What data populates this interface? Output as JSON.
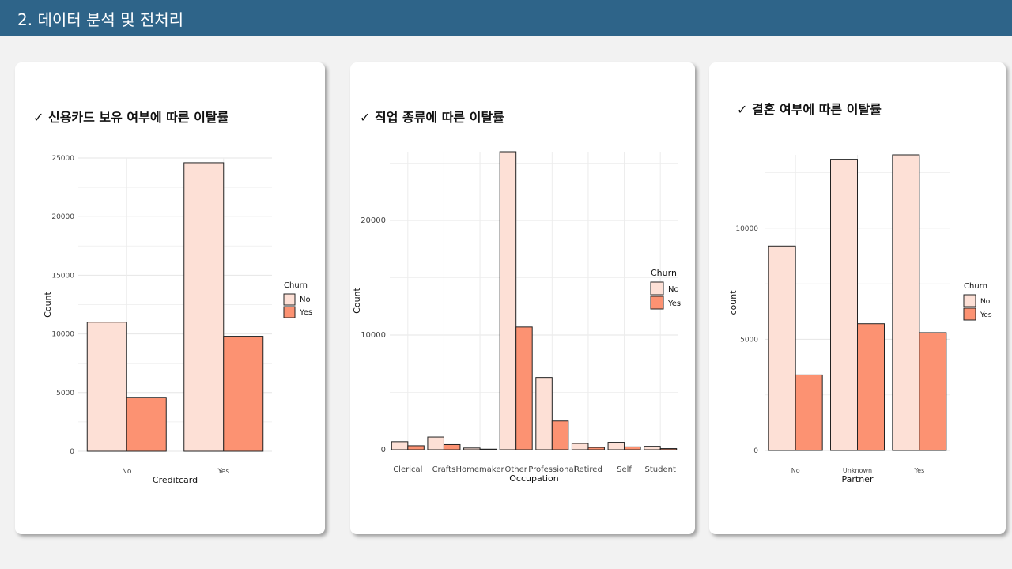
{
  "header": {
    "title": "2. 데이터 분석 및 전처리"
  },
  "cards": [
    {
      "title": "✓ 신용카드 보유 여부에 따른 이탈률"
    },
    {
      "title": "✓ 직업 종류에 따른 이탈률"
    },
    {
      "title": "✓ 결혼 여부에 따른 이탈률"
    }
  ],
  "colors": {
    "no": "#fde0d6",
    "yes": "#fc9272",
    "header": "#2e6489"
  },
  "chart_data": [
    {
      "type": "bar",
      "categories": [
        "No",
        "Yes"
      ],
      "series": [
        {
          "name": "No",
          "values": [
            11000,
            24600
          ]
        },
        {
          "name": "Yes",
          "values": [
            4600,
            9800
          ]
        }
      ],
      "xlabel": "Creditcard",
      "ylabel": "Count",
      "ylim": [
        0,
        25000
      ],
      "yticks": [
        0,
        5000,
        10000,
        15000,
        20000,
        25000
      ],
      "legend_title": "Churn",
      "legend_position": "right"
    },
    {
      "type": "bar",
      "categories": [
        "Clerical",
        "Crafts",
        "Homemaker",
        "Other",
        "Professional",
        "Retired",
        "Self",
        "Student"
      ],
      "series": [
        {
          "name": "No",
          "values": [
            700,
            1100,
            150,
            26000,
            6300,
            550,
            650,
            300
          ]
        },
        {
          "name": "Yes",
          "values": [
            350,
            450,
            50,
            10700,
            2500,
            200,
            250,
            100
          ]
        }
      ],
      "xlabel": "Occupation",
      "ylabel": "Count",
      "ylim": [
        0,
        26000
      ],
      "yticks": [
        0,
        10000,
        20000
      ],
      "legend_title": "Churn",
      "legend_position": "right"
    },
    {
      "type": "bar",
      "categories": [
        "No",
        "Unknown",
        "Yes"
      ],
      "series": [
        {
          "name": "No",
          "values": [
            9200,
            13100,
            13300
          ]
        },
        {
          "name": "Yes",
          "values": [
            3400,
            5700,
            5300
          ]
        }
      ],
      "xlabel": "Partner",
      "ylabel": "count",
      "ylim": [
        0,
        13300
      ],
      "yticks": [
        0,
        5000,
        10000
      ],
      "legend_title": "Churn",
      "legend_position": "right"
    }
  ]
}
